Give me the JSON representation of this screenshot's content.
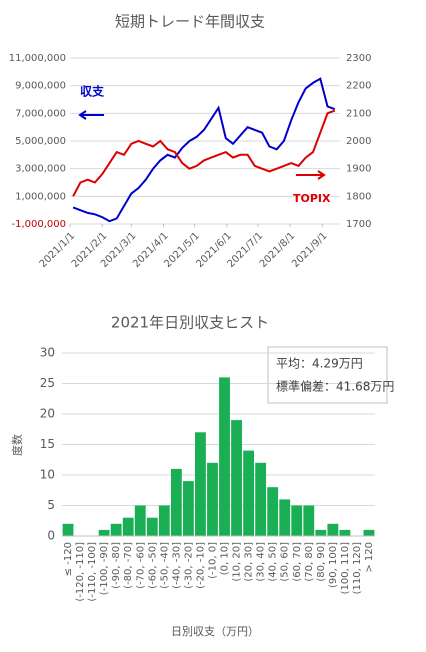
{
  "chart_data": [
    {
      "type": "line",
      "title": "短期トレード年間収支",
      "x": [
        "2021/1/4",
        "2021/1/11",
        "2021/1/18",
        "2021/1/25",
        "2021/2/1",
        "2021/2/8",
        "2021/2/15",
        "2021/2/22",
        "2021/3/1",
        "2021/3/8",
        "2021/3/15",
        "2021/3/22",
        "2021/3/29",
        "2021/4/5",
        "2021/4/12",
        "2021/4/19",
        "2021/4/26",
        "2021/5/3",
        "2021/5/10",
        "2021/5/17",
        "2021/5/24",
        "2021/5/31",
        "2021/6/7",
        "2021/6/14",
        "2021/6/21",
        "2021/6/28",
        "2021/7/5",
        "2021/7/12",
        "2021/7/19",
        "2021/7/26",
        "2021/8/2",
        "2021/8/9",
        "2021/8/16",
        "2021/8/23",
        "2021/8/30",
        "2021/9/6",
        "2021/9/13"
      ],
      "xlim": [
        "2021/1/1",
        "2021/9/18"
      ],
      "xticks": [
        "2021/1/1",
        "2021/2/1",
        "2021/3/1",
        "2021/4/1",
        "2021/5/1",
        "2021/6/1",
        "2021/7/1",
        "2021/8/1",
        "2021/9/1"
      ],
      "series": [
        {
          "name": "収支",
          "color": "#0000cc",
          "axis": "y",
          "values": [
            200000,
            0,
            -200000,
            -300000,
            -500000,
            -800000,
            -600000,
            300000,
            1200000,
            1600000,
            2200000,
            3000000,
            3600000,
            4000000,
            3800000,
            4500000,
            5000000,
            5300000,
            5800000,
            6600000,
            7400000,
            5200000,
            4800000,
            5400000,
            6000000,
            5800000,
            5600000,
            4600000,
            4400000,
            5000000,
            6500000,
            7800000,
            8800000,
            9200000,
            9500000,
            7500000,
            7300000
          ]
        },
        {
          "name": "TOPIX",
          "color": "#dd0000",
          "axis": "y2",
          "values": [
            1800,
            1850,
            1860,
            1850,
            1880,
            1920,
            1960,
            1950,
            1990,
            2000,
            1990,
            1980,
            2000,
            1970,
            1960,
            1920,
            1900,
            1910,
            1930,
            1940,
            1950,
            1960,
            1940,
            1950,
            1950,
            1910,
            1900,
            1890,
            1900,
            1910,
            1920,
            1910,
            1940,
            1960,
            2030,
            2100,
            2110
          ]
        }
      ],
      "ylim": [
        -1000000,
        11000000
      ],
      "yticks": [
        {
          "value": -1000000,
          "label": "-1,000,000"
        },
        {
          "value": 1000000,
          "label": "1,000,000"
        },
        {
          "value": 3000000,
          "label": "3,000,000"
        },
        {
          "value": 5000000,
          "label": "5,000,000"
        },
        {
          "value": 7000000,
          "label": "7,000,000"
        },
        {
          "value": 9000000,
          "label": "9,000,000"
        },
        {
          "value": 11000000,
          "label": "11,000,000"
        }
      ],
      "negative_tick_color": "#c00000",
      "y2lim": [
        1700,
        2300
      ],
      "y2ticks": [
        1700,
        1800,
        1900,
        2000,
        2100,
        2200,
        2300
      ],
      "grid": true
    },
    {
      "type": "bar",
      "title": "2021年日別収支ヒスト",
      "categories": [
        "≤ -120",
        "(-120, -110]",
        "(-110, -100]",
        "(-100, -90]",
        "(-90, -80]",
        "(-80, -70]",
        "(-70, -60]",
        "(-60, -50]",
        "(-50, -40]",
        "(-40, -30]",
        "(-30, -20]",
        "(-20, -10]",
        "(-10, 0]",
        "(0, 10]",
        "(10, 20]",
        "(20, 30]",
        "(30, 40]",
        "(40, 50]",
        "(50, 60]",
        "(60, 70]",
        "(70, 80]",
        "(80, 90]",
        "(90, 100]",
        "(100, 110]",
        "(110, 120]",
        "> 120"
      ],
      "values": [
        2,
        0,
        0,
        1,
        2,
        3,
        5,
        3,
        5,
        11,
        9,
        17,
        12,
        26,
        19,
        14,
        12,
        8,
        6,
        5,
        5,
        1,
        2,
        1,
        0,
        1
      ],
      "color": "#1aaf54",
      "ylim": [
        0,
        30
      ],
      "yticks": [
        0,
        5,
        10,
        15,
        20,
        25,
        30
      ],
      "ylabel": "度数",
      "xlabel": "日別収支（万円）",
      "annotations": [
        "平均：4.29万円",
        "標準偏差：41.68万円"
      ],
      "grid": true
    }
  ]
}
